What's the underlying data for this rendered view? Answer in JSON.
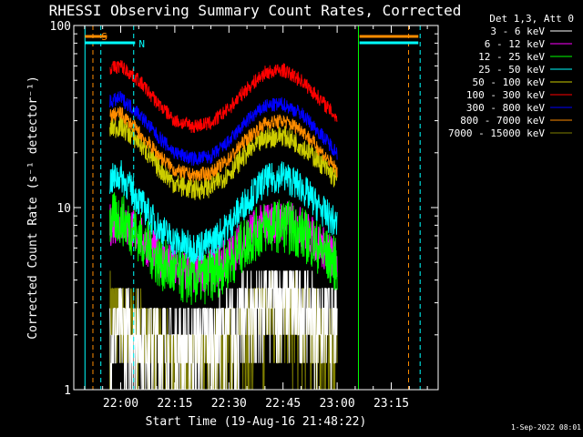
{
  "colors": {
    "background": "#000000",
    "foreground": "#ffffff"
  },
  "chart_data": {
    "type": "line",
    "title": "RHESSI Observing Summary Count Rates, Corrected",
    "xlabel": "Start Time (19-Aug-16 21:48:22)",
    "ylabel": "Corrected Count Rate (s⁻¹ detector⁻¹)",
    "y_scale": "log",
    "ylim": [
      1,
      100
    ],
    "y_ticks": [
      "1",
      "10",
      "100"
    ],
    "x_range_min": [
      -7.37,
      44.63
    ],
    "x_ticks": [
      {
        "min": 0,
        "label": "22:00"
      },
      {
        "min": 15,
        "label": "22:15"
      },
      {
        "min": 30,
        "label": "22:30"
      },
      {
        "min": 45,
        "label": "22:45"
      },
      {
        "min": 60,
        "label": "23:00"
      },
      {
        "min": 75,
        "label": "23:15"
      }
    ],
    "time_unit_note": "x values are minutes after 22:00 UT",
    "legend_header": "Det 1,3, Att 0",
    "footer": "1-Sep-2022 08:01",
    "flag_markers": [
      {
        "label": "S",
        "color": "#ff8c00",
        "start_min": -9.9,
        "end_min": -3.8
      },
      {
        "label": "N",
        "color": "#00ffff",
        "start_min": -9.9,
        "end_min": 4.0
      }
    ],
    "flag_markers_late": [
      {
        "color": "#ff8c00",
        "start_min": 66.2,
        "end_min": 82.5
      },
      {
        "color": "#00ffff",
        "start_min": 66.2,
        "end_min": 82.5
      }
    ],
    "vertical_lines": [
      {
        "min": -9.9,
        "color": "#00ffff",
        "style": "solid"
      },
      {
        "min": -7.7,
        "color": "#ff8c00",
        "style": "dashed"
      },
      {
        "min": -5.5,
        "color": "#00ffff",
        "style": "dashed"
      },
      {
        "min": 3.6,
        "color": "#00ffff",
        "style": "dashed"
      },
      {
        "min": 65.9,
        "color": "#00ff00",
        "style": "solid"
      },
      {
        "min": 83.0,
        "color": "#00ffff",
        "style": "dashed"
      },
      {
        "min": 79.8,
        "color": "#ff8c00",
        "style": "dashed"
      }
    ],
    "series": [
      {
        "name": "3 - 6 keV",
        "color": "#ffffff",
        "x": [
          -3,
          0,
          5,
          10,
          15,
          20,
          25,
          30,
          35,
          40,
          45,
          50,
          55,
          60
        ],
        "y": [
          2.0,
          2.0,
          1.9,
          1.8,
          1.7,
          1.7,
          1.8,
          2.0,
          2.5,
          2.8,
          3.0,
          2.8,
          2.4,
          2.0
        ],
        "noise": 0.35
      },
      {
        "name": "6 - 12 keV",
        "color": "#ff00ff",
        "x": [
          -3,
          0,
          5,
          10,
          15,
          20,
          25,
          30,
          35,
          40,
          45,
          50,
          55,
          60
        ],
        "y": [
          8.0,
          8.5,
          7.0,
          5.5,
          4.6,
          4.3,
          4.5,
          5.4,
          7.0,
          8.2,
          8.5,
          7.7,
          6.4,
          5.0
        ],
        "noise": 0.12
      },
      {
        "name": "12 - 25 keV",
        "color": "#00ff00",
        "x": [
          -3,
          0,
          5,
          10,
          15,
          20,
          25,
          30,
          35,
          40,
          45,
          50,
          55,
          60
        ],
        "y": [
          8.5,
          8.8,
          7.0,
          5.2,
          4.3,
          4.0,
          4.2,
          5.0,
          6.5,
          7.8,
          8.0,
          7.3,
          6.0,
          4.8
        ],
        "noise": 0.15
      },
      {
        "name": "25 - 50 keV",
        "color": "#00ffff",
        "x": [
          -3,
          0,
          5,
          10,
          15,
          20,
          25,
          30,
          35,
          40,
          45,
          50,
          55,
          60
        ],
        "y": [
          14,
          15,
          11,
          8.0,
          6.5,
          6.0,
          6.4,
          8.0,
          11,
          14,
          15,
          13,
          10,
          8.0
        ],
        "noise": 0.09
      },
      {
        "name": "50 - 100 keV",
        "color": "#cccc00",
        "x": [
          -3,
          0,
          5,
          10,
          15,
          20,
          25,
          30,
          35,
          40,
          45,
          50,
          55,
          60
        ],
        "y": [
          27,
          28,
          23,
          17,
          13.5,
          12.5,
          13,
          15.5,
          20,
          24,
          25,
          22,
          18,
          14
        ],
        "noise": 0.06
      },
      {
        "name": "100 - 300 keV",
        "color": "#ff0000",
        "x": [
          -3,
          0,
          5,
          10,
          15,
          20,
          25,
          30,
          35,
          40,
          45,
          50,
          55,
          60
        ],
        "y": [
          58,
          60,
          50,
          38,
          30,
          28,
          29,
          35,
          45,
          55,
          57,
          50,
          40,
          31
        ],
        "noise": 0.04
      },
      {
        "name": "300 - 800 keV",
        "color": "#0000ff",
        "x": [
          -3,
          0,
          5,
          10,
          15,
          20,
          25,
          30,
          35,
          40,
          45,
          50,
          55,
          60
        ],
        "y": [
          38,
          40,
          33,
          25,
          20,
          18.5,
          19,
          23,
          30,
          36,
          37,
          33,
          26,
          20
        ],
        "noise": 0.04
      },
      {
        "name": "800 - 7000 keV",
        "color": "#ff8c00",
        "x": [
          -3,
          0,
          5,
          10,
          15,
          20,
          25,
          30,
          35,
          40,
          45,
          50,
          55,
          60
        ],
        "y": [
          32,
          33,
          26,
          20,
          16,
          15,
          15.5,
          18.5,
          24,
          29,
          30,
          27,
          21,
          16
        ],
        "noise": 0.04
      },
      {
        "name": "7000 - 15000 keV",
        "color": "#808000",
        "x": [
          -3,
          0,
          5,
          10,
          15,
          20,
          25,
          30,
          35,
          40,
          45,
          50,
          55,
          60
        ],
        "y": [
          2.5,
          2.4,
          2.0,
          1.6,
          1.4,
          1.3,
          1.4,
          1.6,
          2.0,
          2.4,
          2.5,
          2.3,
          1.9,
          1.6
        ],
        "noise": 0.35
      }
    ]
  }
}
